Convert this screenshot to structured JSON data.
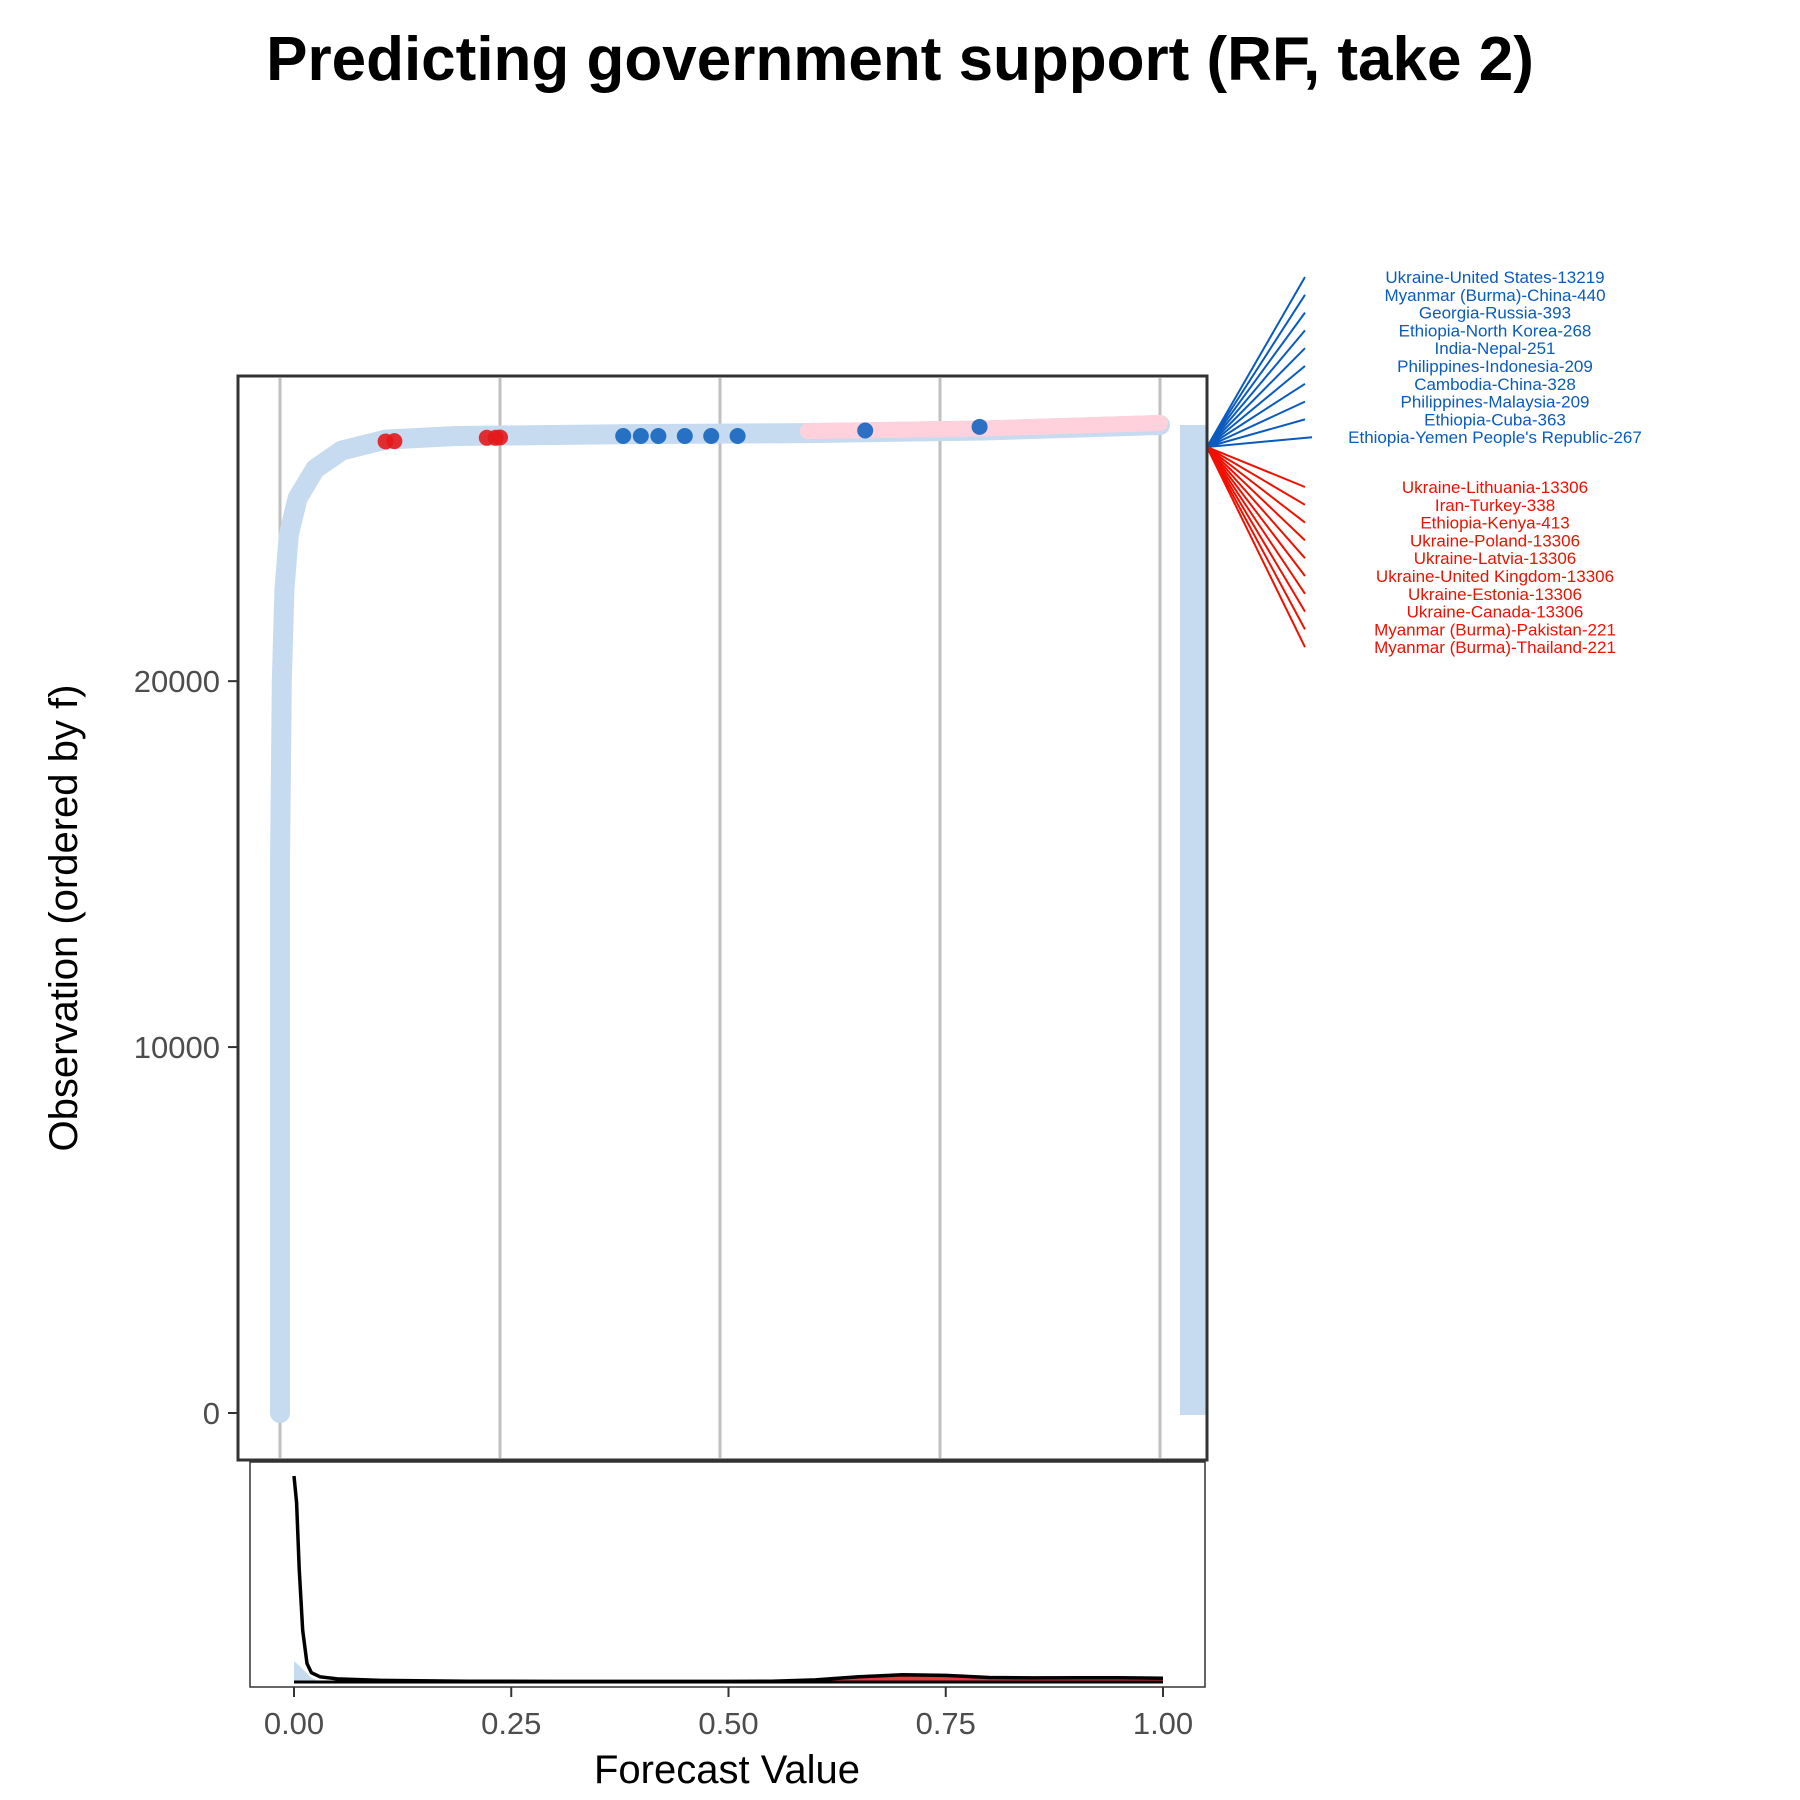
{
  "title": "Predicting government support (RF, take 2)",
  "chart_data": [
    {
      "type": "separation_plot",
      "xlabel": "",
      "ylabel": "Observation (ordered by f)",
      "xlim": [
        0,
        1
      ],
      "ylim": [
        0,
        27000
      ],
      "yticks": [
        0,
        10000,
        20000
      ],
      "xgrid": [
        0,
        0.25,
        0.5,
        0.75,
        1.0
      ],
      "grid": "vertical",
      "legend": "none",
      "n_observations": 27000,
      "colors": {
        "negative_light": "#c6dbef",
        "positive_light": "#ffd1dc",
        "negative_strong": "#1565c0",
        "positive_strong": "#e31a1c",
        "label_blue": "#0a5bbf",
        "label_red": "#ee1100"
      },
      "curve": [
        [
          0.0,
          0
        ],
        [
          0.0,
          15000
        ],
        [
          0.002,
          20000
        ],
        [
          0.005,
          22500
        ],
        [
          0.01,
          24000
        ],
        [
          0.02,
          25000
        ],
        [
          0.04,
          25800
        ],
        [
          0.07,
          26300
        ],
        [
          0.12,
          26600
        ],
        [
          0.2,
          26700
        ],
        [
          0.4,
          26750
        ],
        [
          0.6,
          26780
        ],
        [
          0.8,
          26850
        ],
        [
          1.0,
          27000
        ]
      ],
      "positive_points": [
        {
          "x": 0.12,
          "y": 26550
        },
        {
          "x": 0.13,
          "y": 26560
        },
        {
          "x": 0.235,
          "y": 26650
        },
        {
          "x": 0.245,
          "y": 26650
        },
        {
          "x": 0.25,
          "y": 26660
        }
      ],
      "negative_points": [
        {
          "x": 0.39,
          "y": 26700
        },
        {
          "x": 0.41,
          "y": 26700
        },
        {
          "x": 0.43,
          "y": 26700
        },
        {
          "x": 0.46,
          "y": 26700
        },
        {
          "x": 0.49,
          "y": 26700
        },
        {
          "x": 0.52,
          "y": 26700
        },
        {
          "x": 0.665,
          "y": 26850
        },
        {
          "x": 0.795,
          "y": 26950
        }
      ],
      "top_false_positives": [
        "Ukraine-United States-13219",
        "Myanmar (Burma)-China-440",
        "Georgia-Russia-393",
        "Ethiopia-North Korea-268",
        "India-Nepal-251",
        "Philippines-Indonesia-209",
        "Cambodia-China-328",
        "Philippines-Malaysia-209",
        "Ethiopia-Cuba-363",
        "Ethiopia-Yemen People's Republic-267"
      ],
      "top_false_negatives": [
        "Ukraine-Lithuania-13306",
        "Iran-Turkey-338",
        "Ethiopia-Kenya-413",
        "Ukraine-Poland-13306",
        "Ukraine-Latvia-13306",
        "Ukraine-United Kingdom-13306",
        "Ukraine-Estonia-13306",
        "Ukraine-Canada-13306",
        "Myanmar (Burma)-Pakistan-221",
        "Myanmar (Burma)-Thailand-221"
      ]
    },
    {
      "type": "area",
      "xlabel": "Forecast Value",
      "ylabel": "",
      "xlim": [
        0,
        1
      ],
      "xticks": [
        0.0,
        0.25,
        0.5,
        0.75,
        1.0
      ],
      "xtick_labels": [
        "0.00",
        "0.25",
        "0.50",
        "0.75",
        "1.00"
      ],
      "series": [
        {
          "color": "#000000",
          "x": [
            0.0,
            0.003,
            0.006,
            0.01,
            0.015,
            0.02,
            0.03,
            0.05,
            0.1,
            0.2,
            0.3,
            0.4,
            0.5,
            0.55,
            0.6,
            0.65,
            0.7,
            0.75,
            0.8,
            0.85,
            0.9,
            0.95,
            1.0
          ],
          "y": [
            1.0,
            0.87,
            0.55,
            0.25,
            0.09,
            0.045,
            0.025,
            0.015,
            0.008,
            0.004,
            0.003,
            0.003,
            0.003,
            0.004,
            0.01,
            0.025,
            0.035,
            0.032,
            0.022,
            0.02,
            0.021,
            0.021,
            0.018
          ]
        },
        {
          "color": "#e31a1c",
          "x": [
            0.0,
            0.3,
            0.5,
            0.55,
            0.6,
            0.65,
            0.7,
            0.75,
            0.8,
            0.85,
            0.9,
            0.95,
            1.0
          ],
          "y": [
            0.0,
            0.0,
            0.002,
            0.004,
            0.01,
            0.022,
            0.03,
            0.028,
            0.02,
            0.018,
            0.019,
            0.019,
            0.016
          ]
        }
      ]
    }
  ]
}
